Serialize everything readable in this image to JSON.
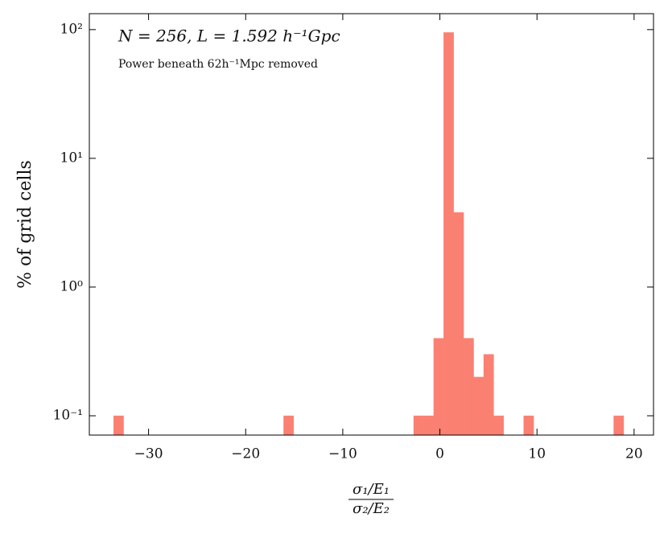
{
  "chart_data": {
    "type": "histogram",
    "annotation": "N = 256,    L = 1.592 h⁻¹Gpc",
    "subannotation": "Power beneath 62h⁻¹Mpc removed",
    "ylabel": "% of grid cells",
    "xlabel": {
      "numerator": "σ₁/E₁",
      "denominator": "σ₂/E₂"
    },
    "color": "#fa8072",
    "log_y": true,
    "bins": [
      -33.6,
      -32.57,
      -31.54,
      -30.51,
      -29.48,
      -28.45,
      -27.42,
      -26.39,
      -25.36,
      -24.33,
      -23.3,
      -22.27,
      -21.24,
      -20.21,
      -19.18,
      -18.15,
      -17.12,
      -16.09,
      -15.06,
      -14.03,
      -13.0,
      -11.97,
      -10.94,
      -9.91,
      -8.88,
      -7.85,
      -6.82,
      -5.79,
      -4.76,
      -3.73,
      -2.7,
      -1.67,
      -0.64,
      0.39,
      1.42,
      2.45,
      3.48,
      4.51,
      5.54,
      6.57,
      7.6,
      8.63,
      9.66,
      10.69,
      11.72,
      12.75,
      13.78,
      14.81,
      15.84,
      16.87,
      17.9,
      18.93
    ],
    "values": [
      0.1,
      0,
      0,
      0,
      0,
      0,
      0,
      0,
      0,
      0,
      0,
      0,
      0,
      0,
      0,
      0,
      0,
      0.1,
      0,
      0,
      0,
      0,
      0,
      0,
      0,
      0,
      0,
      0,
      0,
      0,
      0.1,
      0.1,
      0.4,
      95,
      3.8,
      0.4,
      0.2,
      0.3,
      0.1,
      0,
      0,
      0.1,
      0,
      0,
      0,
      0,
      0,
      0,
      0,
      0,
      0.1
    ],
    "xlim": [
      -36.1,
      22
    ],
    "ylim": [
      0.0708,
      133
    ],
    "xticks": [
      {
        "value": -30,
        "label": "−30"
      },
      {
        "value": -20,
        "label": "−20"
      },
      {
        "value": -10,
        "label": "−10"
      },
      0,
      10,
      20
    ],
    "yticks": [
      {
        "value": 0.1,
        "label": "10⁻¹"
      },
      {
        "value": 1,
        "label": "10⁰"
      },
      {
        "value": 10,
        "label": "10¹"
      },
      {
        "value": 100,
        "label": "10²"
      }
    ]
  }
}
